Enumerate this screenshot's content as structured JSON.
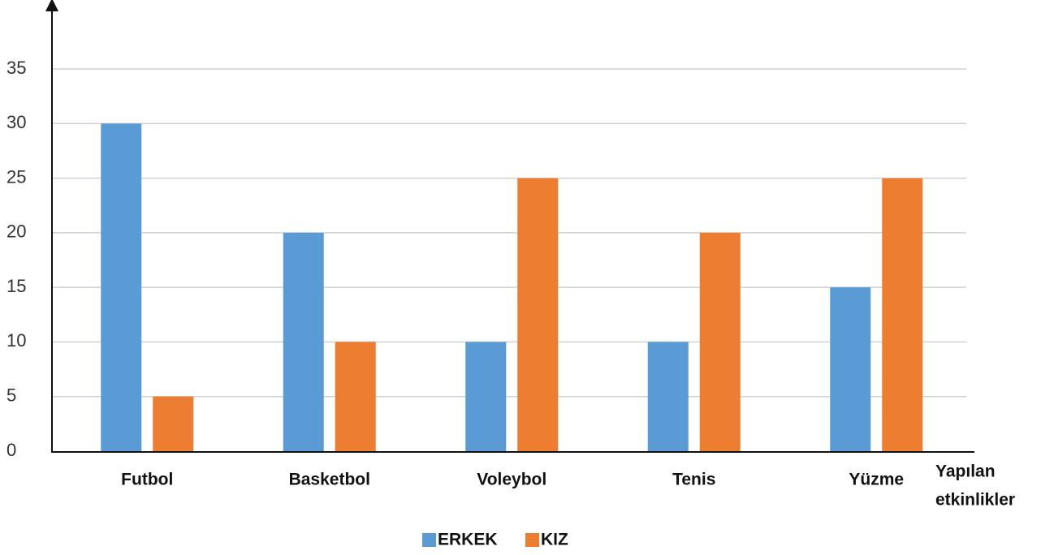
{
  "chart_data": {
    "type": "bar",
    "categories": [
      "Futbol",
      "Basketbol",
      "Voleybol",
      "Tenis",
      "Yüzme"
    ],
    "series": [
      {
        "name": "ERKEK",
        "color": "#5b9bd5",
        "values": [
          30,
          20,
          10,
          10,
          15
        ]
      },
      {
        "name": "KIZ",
        "color": "#ed7d31",
        "values": [
          5,
          10,
          25,
          20,
          25
        ]
      }
    ],
    "x_label": [
      "Yapılan",
      "etkinlikler"
    ],
    "ylim": [
      0,
      35
    ],
    "yticks": [
      0,
      5,
      10,
      15,
      20,
      25,
      30,
      35
    ],
    "grid": true,
    "legend": "bottom"
  }
}
